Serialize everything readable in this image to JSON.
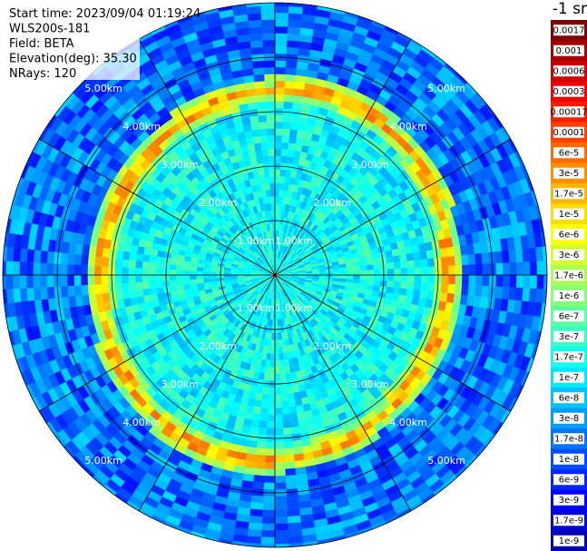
{
  "header": {
    "lines": [
      "Start time: 2023/09/04 01:19:24",
      "WLS200s-181",
      "Field: BETA",
      "Elevation(deg): 35.30",
      "NRays: 120"
    ]
  },
  "range_labels": [
    "1.00km",
    "2.00km",
    "3.00km",
    "4.00km",
    "5.00km"
  ],
  "colorbar": {
    "unit": "-1 sr",
    "labels": [
      "0.0017",
      "0.001",
      "0.0006",
      "0.0003",
      "0.00017",
      "0.0001",
      "6e-5",
      "3e-5",
      "1.7e-5",
      "1e-5",
      "6e-6",
      "3e-6",
      "1.7e-6",
      "1e-6",
      "6e-7",
      "3e-7",
      "1.7e-7",
      "1e-7",
      "6e-8",
      "3e-8",
      "1.7e-8",
      "1e-8",
      "6e-9",
      "3e-9",
      "1.7e-9",
      "1e-9"
    ]
  }
}
